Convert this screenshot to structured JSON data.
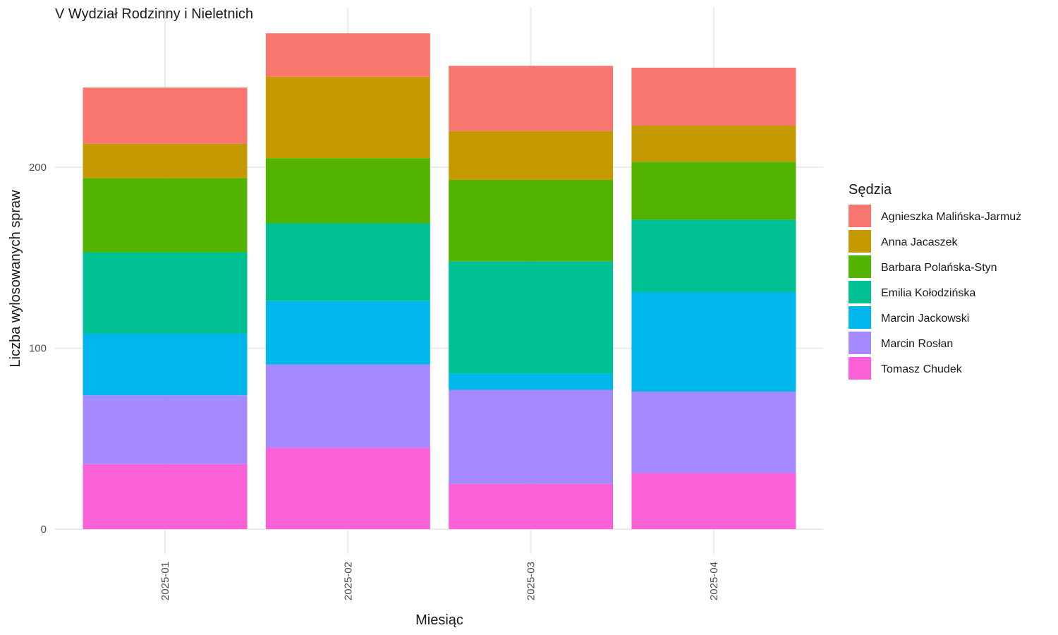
{
  "chart_data": {
    "type": "bar",
    "stacked": true,
    "title": "V Wydział Rodzinny i Nieletnich",
    "xlabel": "Miesiąc",
    "ylabel": "Liczba wylosowanych spraw",
    "categories": [
      "2025-01",
      "2025-02",
      "2025-03",
      "2025-04"
    ],
    "x_tick_rotation": "vertical",
    "ylim": [
      0,
      280
    ],
    "y_ticks": [
      0,
      100,
      200
    ],
    "grid": true,
    "legend": {
      "title": "Sędzia",
      "placement": "right"
    },
    "series": [
      {
        "name": "Agnieszka Malińska-Jarmuż",
        "color": "#F8766D",
        "values": [
          31,
          24,
          36,
          32
        ]
      },
      {
        "name": "Anna Jacaszek",
        "color": "#C49A00",
        "values": [
          19,
          45,
          27,
          20
        ]
      },
      {
        "name": "Barbara Polańska-Styn",
        "color": "#53B400",
        "values": [
          41,
          36,
          45,
          32
        ]
      },
      {
        "name": "Emilia Kołodzińska",
        "color": "#00C094",
        "values": [
          45,
          43,
          62,
          40
        ]
      },
      {
        "name": "Marcin Jackowski",
        "color": "#00B6EB",
        "values": [
          34,
          35,
          9,
          55
        ]
      },
      {
        "name": "Marcin Rosłan",
        "color": "#A58AFF",
        "values": [
          38,
          46,
          52,
          45
        ]
      },
      {
        "name": "Tomasz Chudek",
        "color": "#FB61D7",
        "values": [
          36,
          45,
          25,
          31
        ]
      }
    ]
  }
}
